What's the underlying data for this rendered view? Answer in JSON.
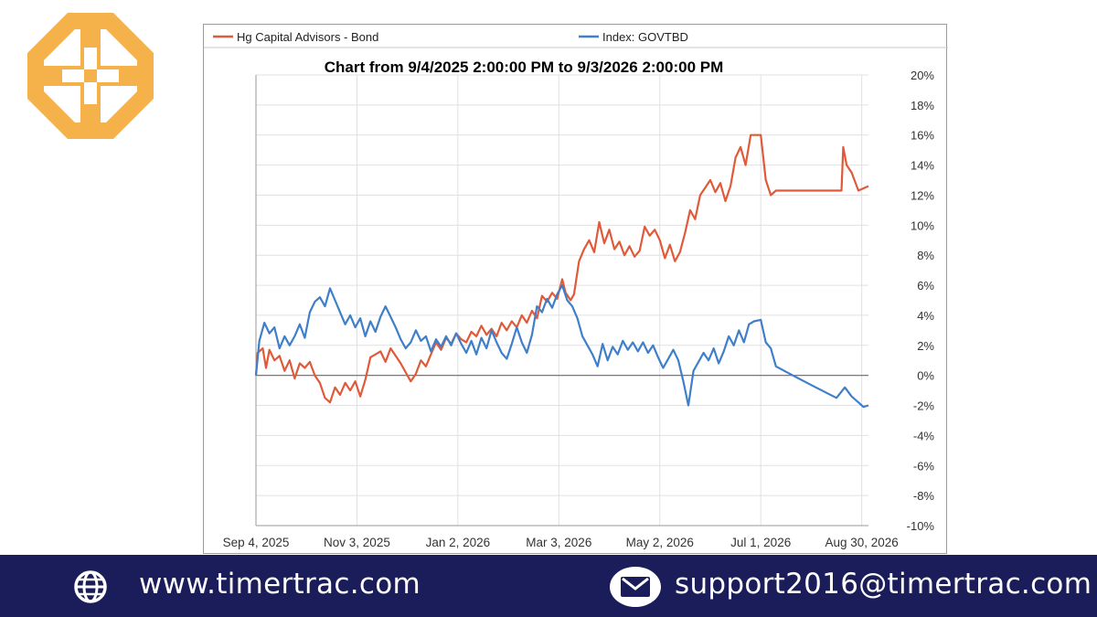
{
  "brand": {
    "logo_color": "#f6b24a",
    "footer_bg": "#1b1d5b"
  },
  "footer": {
    "website": "www.timertrac.com",
    "website_icon": "globe-icon",
    "email": "support2016@timertrac.com",
    "email_icon": "envelope-icon"
  },
  "chart_data": {
    "type": "line",
    "title": "Chart from 9/4/2025 2:00:00 PM to 9/3/2026 2:00:00 PM",
    "legend_position": "top",
    "xlabel": "",
    "ylabel": "",
    "x_ticks": [
      "Sep 4, 2025",
      "Nov 3, 2025",
      "Jan 2, 2026",
      "Mar 3, 2026",
      "May 2, 2026",
      "Jul 1, 2026",
      "Aug 30, 2026"
    ],
    "y_ticks": [
      "20%",
      "18%",
      "16%",
      "14%",
      "12%",
      "10%",
      "8%",
      "6%",
      "4%",
      "2%",
      "0%",
      "-2%",
      "-4%",
      "-6%",
      "-8%",
      "-10%"
    ],
    "xlim": [
      "2025-09-04",
      "2026-09-03"
    ],
    "ylim": [
      -10,
      20
    ],
    "y_unit": "%",
    "grid": true,
    "series": [
      {
        "name": "Hg Capital Advisors - Bond",
        "color": "#e05a3a",
        "points": [
          [
            "2025-09-04",
            0.0
          ],
          [
            "2025-09-05",
            1.5
          ],
          [
            "2025-09-08",
            1.8
          ],
          [
            "2025-09-10",
            0.5
          ],
          [
            "2025-09-12",
            1.7
          ],
          [
            "2025-09-15",
            1.0
          ],
          [
            "2025-09-18",
            1.3
          ],
          [
            "2025-09-21",
            0.3
          ],
          [
            "2025-09-24",
            1.0
          ],
          [
            "2025-09-27",
            -0.2
          ],
          [
            "2025-09-30",
            0.8
          ],
          [
            "2025-10-03",
            0.5
          ],
          [
            "2025-10-06",
            0.9
          ],
          [
            "2025-10-09",
            0.0
          ],
          [
            "2025-10-12",
            -0.5
          ],
          [
            "2025-10-15",
            -1.5
          ],
          [
            "2025-10-18",
            -1.8
          ],
          [
            "2025-10-21",
            -0.8
          ],
          [
            "2025-10-24",
            -1.3
          ],
          [
            "2025-10-27",
            -0.5
          ],
          [
            "2025-10-30",
            -1.0
          ],
          [
            "2025-11-02",
            -0.4
          ],
          [
            "2025-11-05",
            -1.4
          ],
          [
            "2025-11-08",
            -0.3
          ],
          [
            "2025-11-11",
            1.2
          ],
          [
            "2025-11-14",
            1.4
          ],
          [
            "2025-11-17",
            1.6
          ],
          [
            "2025-11-20",
            0.9
          ],
          [
            "2025-11-23",
            1.8
          ],
          [
            "2025-11-26",
            1.3
          ],
          [
            "2025-11-29",
            0.8
          ],
          [
            "2025-12-02",
            0.2
          ],
          [
            "2025-12-05",
            -0.4
          ],
          [
            "2025-12-08",
            0.1
          ],
          [
            "2025-12-11",
            1.0
          ],
          [
            "2025-12-14",
            0.6
          ],
          [
            "2025-12-17",
            1.4
          ],
          [
            "2025-12-20",
            2.2
          ],
          [
            "2025-12-23",
            1.7
          ],
          [
            "2025-12-26",
            2.5
          ],
          [
            "2025-12-29",
            2.1
          ],
          [
            "2026-01-01",
            2.8
          ],
          [
            "2026-01-04",
            2.4
          ],
          [
            "2026-01-07",
            2.2
          ],
          [
            "2026-01-10",
            2.9
          ],
          [
            "2026-01-13",
            2.6
          ],
          [
            "2026-01-16",
            3.3
          ],
          [
            "2026-01-19",
            2.7
          ],
          [
            "2026-01-22",
            3.1
          ],
          [
            "2026-01-25",
            2.6
          ],
          [
            "2026-01-28",
            3.5
          ],
          [
            "2026-01-31",
            3.0
          ],
          [
            "2026-02-03",
            3.6
          ],
          [
            "2026-02-06",
            3.2
          ],
          [
            "2026-02-09",
            4.0
          ],
          [
            "2026-02-12",
            3.5
          ],
          [
            "2026-02-15",
            4.3
          ],
          [
            "2026-02-18",
            3.8
          ],
          [
            "2026-02-21",
            5.3
          ],
          [
            "2026-02-24",
            4.9
          ],
          [
            "2026-02-27",
            5.5
          ],
          [
            "2026-03-02",
            5.1
          ],
          [
            "2026-03-05",
            6.4
          ],
          [
            "2026-03-07",
            5.5
          ],
          [
            "2026-03-10",
            5.0
          ],
          [
            "2026-03-12",
            5.4
          ],
          [
            "2026-03-15",
            7.6
          ],
          [
            "2026-03-18",
            8.4
          ],
          [
            "2026-03-21",
            9.0
          ],
          [
            "2026-03-24",
            8.2
          ],
          [
            "2026-03-27",
            10.2
          ],
          [
            "2026-03-30",
            8.8
          ],
          [
            "2026-04-02",
            9.7
          ],
          [
            "2026-04-05",
            8.4
          ],
          [
            "2026-04-08",
            8.9
          ],
          [
            "2026-04-11",
            8.0
          ],
          [
            "2026-04-14",
            8.6
          ],
          [
            "2026-04-17",
            7.9
          ],
          [
            "2026-04-20",
            8.3
          ],
          [
            "2026-04-23",
            9.9
          ],
          [
            "2026-04-26",
            9.3
          ],
          [
            "2026-04-29",
            9.7
          ],
          [
            "2026-05-02",
            9.0
          ],
          [
            "2026-05-05",
            7.8
          ],
          [
            "2026-05-08",
            8.7
          ],
          [
            "2026-05-11",
            7.6
          ],
          [
            "2026-05-14",
            8.2
          ],
          [
            "2026-05-17",
            9.5
          ],
          [
            "2026-05-20",
            11.0
          ],
          [
            "2026-05-23",
            10.4
          ],
          [
            "2026-05-26",
            12.0
          ],
          [
            "2026-05-29",
            12.5
          ],
          [
            "2026-06-01",
            13.0
          ],
          [
            "2026-06-04",
            12.2
          ],
          [
            "2026-06-07",
            12.8
          ],
          [
            "2026-06-10",
            11.6
          ],
          [
            "2026-06-13",
            12.6
          ],
          [
            "2026-06-16",
            14.5
          ],
          [
            "2026-06-19",
            15.2
          ],
          [
            "2026-06-22",
            14.0
          ],
          [
            "2026-06-25",
            16.0
          ],
          [
            "2026-07-01",
            16.0
          ],
          [
            "2026-07-04",
            13.0
          ],
          [
            "2026-07-07",
            12.0
          ],
          [
            "2026-07-10",
            12.3
          ],
          [
            "2026-08-13",
            12.3
          ],
          [
            "2026-08-18",
            12.3
          ],
          [
            "2026-08-19",
            15.2
          ],
          [
            "2026-08-21",
            14.0
          ],
          [
            "2026-08-24",
            13.5
          ],
          [
            "2026-08-28",
            12.3
          ],
          [
            "2026-09-03",
            12.6
          ]
        ]
      },
      {
        "name": "Index: GOVTBD",
        "color": "#3f7fc9",
        "points": [
          [
            "2025-09-04",
            0.0
          ],
          [
            "2025-09-06",
            2.3
          ],
          [
            "2025-09-09",
            3.5
          ],
          [
            "2025-09-12",
            2.8
          ],
          [
            "2025-09-15",
            3.2
          ],
          [
            "2025-09-18",
            1.8
          ],
          [
            "2025-09-21",
            2.6
          ],
          [
            "2025-09-24",
            2.0
          ],
          [
            "2025-09-27",
            2.6
          ],
          [
            "2025-09-30",
            3.4
          ],
          [
            "2025-10-03",
            2.5
          ],
          [
            "2025-10-06",
            4.2
          ],
          [
            "2025-10-09",
            4.9
          ],
          [
            "2025-10-12",
            5.2
          ],
          [
            "2025-10-15",
            4.6
          ],
          [
            "2025-10-18",
            5.8
          ],
          [
            "2025-10-21",
            5.0
          ],
          [
            "2025-10-24",
            4.2
          ],
          [
            "2025-10-27",
            3.4
          ],
          [
            "2025-10-30",
            4.0
          ],
          [
            "2025-11-02",
            3.2
          ],
          [
            "2025-11-05",
            3.8
          ],
          [
            "2025-11-08",
            2.6
          ],
          [
            "2025-11-11",
            3.6
          ],
          [
            "2025-11-14",
            2.9
          ],
          [
            "2025-11-17",
            3.9
          ],
          [
            "2025-11-20",
            4.6
          ],
          [
            "2025-11-23",
            3.9
          ],
          [
            "2025-11-26",
            3.2
          ],
          [
            "2025-11-29",
            2.4
          ],
          [
            "2025-12-02",
            1.8
          ],
          [
            "2025-12-05",
            2.2
          ],
          [
            "2025-12-08",
            3.0
          ],
          [
            "2025-12-11",
            2.3
          ],
          [
            "2025-12-14",
            2.6
          ],
          [
            "2025-12-17",
            1.6
          ],
          [
            "2025-12-20",
            2.4
          ],
          [
            "2025-12-23",
            1.9
          ],
          [
            "2025-12-26",
            2.6
          ],
          [
            "2025-12-29",
            2.0
          ],
          [
            "2026-01-01",
            2.8
          ],
          [
            "2026-01-04",
            2.1
          ],
          [
            "2026-01-07",
            1.5
          ],
          [
            "2026-01-10",
            2.3
          ],
          [
            "2026-01-13",
            1.4
          ],
          [
            "2026-01-16",
            2.5
          ],
          [
            "2026-01-19",
            1.8
          ],
          [
            "2026-01-22",
            3.0
          ],
          [
            "2026-01-25",
            2.2
          ],
          [
            "2026-01-28",
            1.5
          ],
          [
            "2026-01-31",
            1.1
          ],
          [
            "2026-02-03",
            2.1
          ],
          [
            "2026-02-06",
            3.2
          ],
          [
            "2026-02-09",
            2.2
          ],
          [
            "2026-02-12",
            1.5
          ],
          [
            "2026-02-15",
            2.7
          ],
          [
            "2026-02-18",
            4.6
          ],
          [
            "2026-02-21",
            4.2
          ],
          [
            "2026-02-24",
            5.1
          ],
          [
            "2026-02-27",
            4.5
          ],
          [
            "2026-03-02",
            5.4
          ],
          [
            "2026-03-05",
            6.0
          ],
          [
            "2026-03-08",
            5.0
          ],
          [
            "2026-03-11",
            4.6
          ],
          [
            "2026-03-14",
            3.8
          ],
          [
            "2026-03-17",
            2.6
          ],
          [
            "2026-03-20",
            2.0
          ],
          [
            "2026-03-23",
            1.4
          ],
          [
            "2026-03-26",
            0.6
          ],
          [
            "2026-03-29",
            2.1
          ],
          [
            "2026-04-01",
            1.0
          ],
          [
            "2026-04-04",
            1.9
          ],
          [
            "2026-04-07",
            1.4
          ],
          [
            "2026-04-10",
            2.3
          ],
          [
            "2026-04-13",
            1.7
          ],
          [
            "2026-04-16",
            2.2
          ],
          [
            "2026-04-19",
            1.6
          ],
          [
            "2026-04-22",
            2.2
          ],
          [
            "2026-04-25",
            1.5
          ],
          [
            "2026-04-28",
            2.0
          ],
          [
            "2026-05-01",
            1.2
          ],
          [
            "2026-05-04",
            0.5
          ],
          [
            "2026-05-07",
            1.1
          ],
          [
            "2026-05-10",
            1.7
          ],
          [
            "2026-05-13",
            1.0
          ],
          [
            "2026-05-16",
            -0.4
          ],
          [
            "2026-05-19",
            -2.0
          ],
          [
            "2026-05-22",
            0.3
          ],
          [
            "2026-05-25",
            0.9
          ],
          [
            "2026-05-28",
            1.5
          ],
          [
            "2026-05-31",
            1.0
          ],
          [
            "2026-06-03",
            1.8
          ],
          [
            "2026-06-06",
            0.8
          ],
          [
            "2026-06-09",
            1.6
          ],
          [
            "2026-06-12",
            2.6
          ],
          [
            "2026-06-15",
            2.0
          ],
          [
            "2026-06-18",
            3.0
          ],
          [
            "2026-06-21",
            2.2
          ],
          [
            "2026-06-24",
            3.4
          ],
          [
            "2026-06-27",
            3.6
          ],
          [
            "2026-07-01",
            3.7
          ],
          [
            "2026-07-04",
            2.2
          ],
          [
            "2026-07-07",
            1.8
          ],
          [
            "2026-07-10",
            0.6
          ],
          [
            "2026-07-20",
            0.0
          ],
          [
            "2026-08-01",
            -0.7
          ],
          [
            "2026-08-15",
            -1.5
          ],
          [
            "2026-08-20",
            -0.8
          ],
          [
            "2026-08-24",
            -1.4
          ],
          [
            "2026-08-28",
            -1.8
          ],
          [
            "2026-08-31",
            -2.1
          ],
          [
            "2026-09-03",
            -2.0
          ]
        ]
      }
    ]
  }
}
